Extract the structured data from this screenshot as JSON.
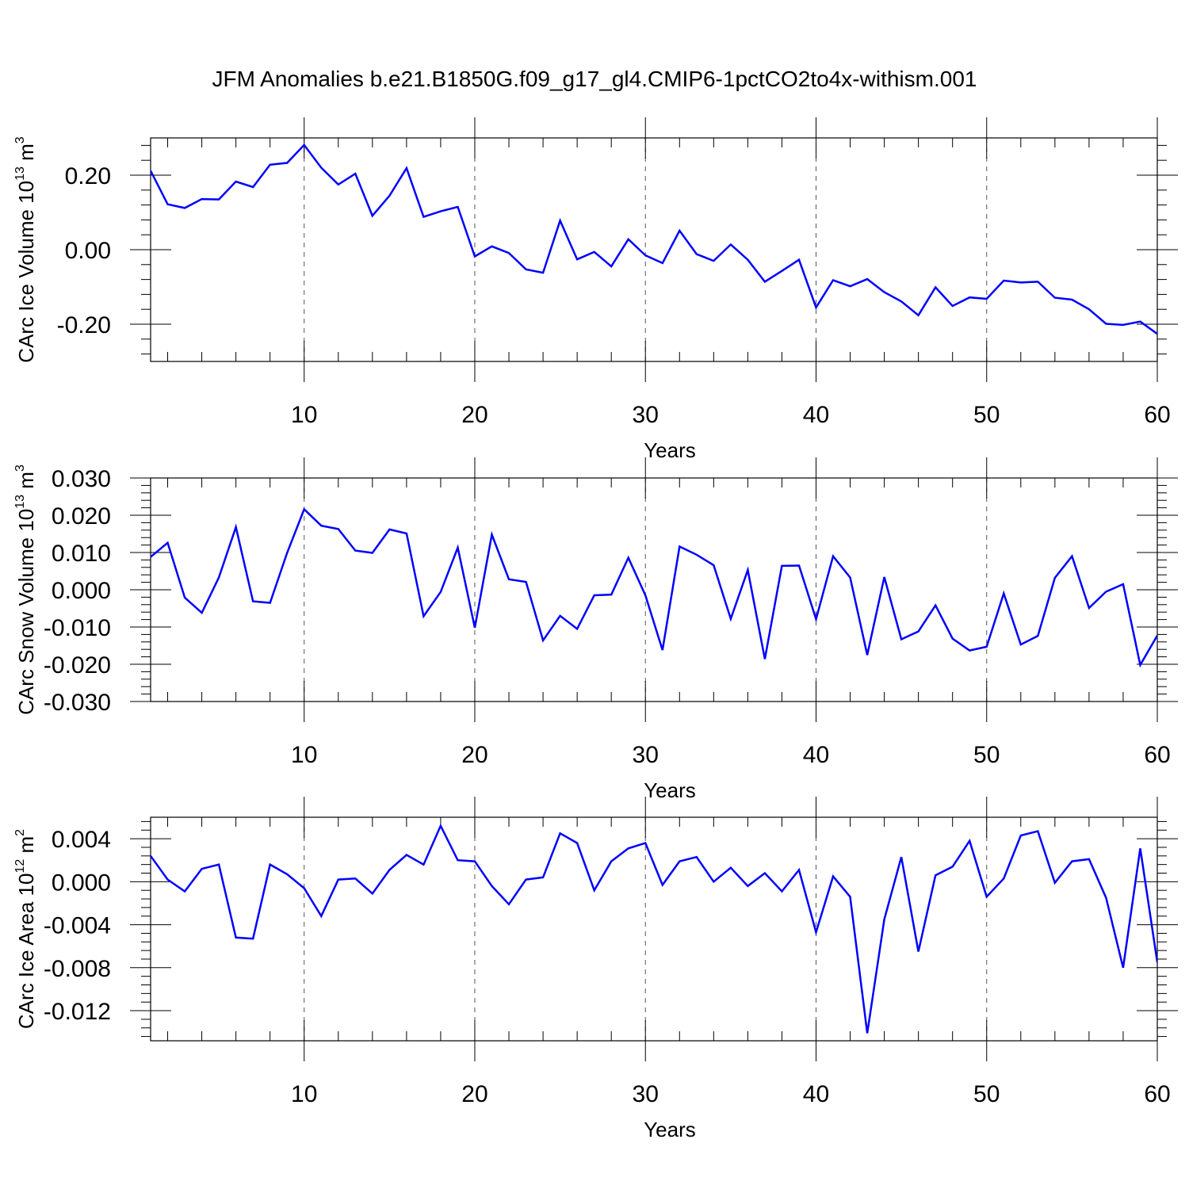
{
  "title": "JFM Anomalies b.e21.B1850G.f09_g17_gl4.CMIP6-1pctCO2to4x-withism.001",
  "colors": {
    "line": "#0000ff",
    "axis": "#000000",
    "grid": "#555555"
  },
  "chart_data": [
    {
      "type": "line",
      "ylabel_main": "CArc Ice Volume 10",
      "ylabel_exp": "13",
      "ylabel_unit": " m",
      "ylabel_unit_exp": "3",
      "xlabel": "Years",
      "xlim": [
        1,
        60
      ],
      "ylim": [
        -0.3,
        0.3
      ],
      "xticks": [
        10,
        20,
        30,
        40,
        50,
        60
      ],
      "xtick_labels": [
        "10",
        "20",
        "30",
        "40",
        "50",
        "60"
      ],
      "yticks": [
        0.2,
        0.0,
        -0.2
      ],
      "ytick_labels": [
        "0.20",
        "0.00",
        "-0.20"
      ],
      "grid": "vertical dashed at major x ticks",
      "x": [
        1,
        2,
        3,
        4,
        5,
        6,
        7,
        8,
        9,
        10,
        11,
        12,
        13,
        14,
        15,
        16,
        17,
        18,
        19,
        20,
        21,
        22,
        23,
        24,
        25,
        26,
        27,
        28,
        29,
        30,
        31,
        32,
        33,
        34,
        35,
        36,
        37,
        38,
        39,
        40,
        41,
        42,
        43,
        44,
        45,
        46,
        47,
        48,
        49,
        50,
        51,
        52,
        53,
        54,
        55,
        56,
        57,
        58,
        59,
        60
      ],
      "series": [
        {
          "name": "CArc Ice Volume",
          "values": [
            0.212,
            0.122,
            0.112,
            0.136,
            0.135,
            0.183,
            0.168,
            0.228,
            0.233,
            0.281,
            0.22,
            0.175,
            0.204,
            0.091,
            0.145,
            0.219,
            0.088,
            0.103,
            0.115,
            -0.018,
            0.009,
            -0.009,
            -0.053,
            -0.062,
            0.078,
            -0.026,
            -0.006,
            -0.045,
            0.028,
            -0.015,
            -0.036,
            0.051,
            -0.012,
            -0.03,
            0.014,
            -0.027,
            -0.086,
            -0.057,
            -0.027,
            -0.155,
            -0.082,
            -0.098,
            -0.079,
            -0.114,
            -0.139,
            -0.176,
            -0.101,
            -0.151,
            -0.128,
            -0.132,
            -0.083,
            -0.088,
            -0.086,
            -0.129,
            -0.134,
            -0.16,
            -0.199,
            -0.202,
            -0.193,
            -0.226
          ]
        }
      ]
    },
    {
      "type": "line",
      "ylabel_main": "CArc Snow Volume 10",
      "ylabel_exp": "13",
      "ylabel_unit": " m",
      "ylabel_unit_exp": "3",
      "xlabel": "Years",
      "xlim": [
        1,
        60
      ],
      "ylim": [
        -0.03,
        0.03
      ],
      "xticks": [
        10,
        20,
        30,
        40,
        50,
        60
      ],
      "xtick_labels": [
        "10",
        "20",
        "30",
        "40",
        "50",
        "60"
      ],
      "yticks": [
        0.03,
        0.02,
        0.01,
        0.0,
        -0.01,
        -0.02,
        -0.03
      ],
      "ytick_labels": [
        "0.030",
        "0.020",
        "0.010",
        "0.000",
        "-0.010",
        "-0.020",
        "-0.030"
      ],
      "grid": "vertical dashed at major x ticks",
      "x": [
        1,
        2,
        3,
        4,
        5,
        6,
        7,
        8,
        9,
        10,
        11,
        12,
        13,
        14,
        15,
        16,
        17,
        18,
        19,
        20,
        21,
        22,
        23,
        24,
        25,
        26,
        27,
        28,
        29,
        30,
        31,
        32,
        33,
        34,
        35,
        36,
        37,
        38,
        39,
        40,
        41,
        42,
        43,
        44,
        45,
        46,
        47,
        48,
        49,
        50,
        51,
        52,
        53,
        54,
        55,
        56,
        57,
        58,
        59,
        60
      ],
      "series": [
        {
          "name": "CArc Snow Volume",
          "values": [
            0.0088,
            0.0126,
            -0.0021,
            -0.0062,
            0.0033,
            0.0168,
            -0.0031,
            -0.0035,
            0.0099,
            0.0216,
            0.0172,
            0.0163,
            0.0105,
            0.0099,
            0.0162,
            0.0151,
            -0.0071,
            -0.0006,
            0.0113,
            -0.0102,
            0.0148,
            0.0028,
            0.0021,
            -0.0136,
            -0.007,
            -0.0105,
            -0.0015,
            -0.0013,
            0.0086,
            -0.0015,
            -0.0162,
            0.0116,
            0.0094,
            0.0066,
            -0.0078,
            0.0053,
            -0.0186,
            0.0064,
            0.0065,
            -0.0079,
            0.009,
            0.0033,
            -0.0175,
            0.0034,
            -0.0133,
            -0.0112,
            -0.0042,
            -0.0131,
            -0.0163,
            -0.0153,
            -0.001,
            -0.0147,
            -0.0124,
            0.0032,
            0.009,
            -0.0049,
            -0.0005,
            0.0015,
            -0.0202,
            -0.0123
          ]
        }
      ]
    },
    {
      "type": "line",
      "ylabel_main": "CArc Ice Area 10",
      "ylabel_exp": "12",
      "ylabel_unit": " m",
      "ylabel_unit_exp": "2",
      "xlabel": "Years",
      "xlim": [
        1,
        60
      ],
      "ylim": [
        -0.0148,
        0.006
      ],
      "xticks": [
        10,
        20,
        30,
        40,
        50,
        60
      ],
      "xtick_labels": [
        "10",
        "20",
        "30",
        "40",
        "50",
        "60"
      ],
      "yticks": [
        0.004,
        0.0,
        -0.004,
        -0.008,
        -0.012
      ],
      "ytick_labels": [
        "0.004",
        "0.000",
        "-0.004",
        "-0.008",
        "-0.012"
      ],
      "grid": "vertical dashed at major x ticks",
      "x": [
        1,
        2,
        3,
        4,
        5,
        6,
        7,
        8,
        9,
        10,
        11,
        12,
        13,
        14,
        15,
        16,
        17,
        18,
        19,
        20,
        21,
        22,
        23,
        24,
        25,
        26,
        27,
        28,
        29,
        30,
        31,
        32,
        33,
        34,
        35,
        36,
        37,
        38,
        39,
        40,
        41,
        42,
        43,
        44,
        45,
        46,
        47,
        48,
        49,
        50,
        51,
        52,
        53,
        54,
        55,
        56,
        57,
        58,
        59,
        60
      ],
      "series": [
        {
          "name": "CArc Ice Area",
          "values": [
            0.0024,
            0.0002,
            -0.0009,
            0.0012,
            0.0016,
            -0.0052,
            -0.0053,
            0.0016,
            0.0007,
            -0.0006,
            -0.0032,
            0.0002,
            0.0003,
            -0.0011,
            0.0011,
            0.0025,
            0.0016,
            0.0052,
            0.002,
            0.0019,
            -0.0004,
            -0.0021,
            0.0002,
            0.0004,
            0.0045,
            0.0036,
            -0.0008,
            0.0019,
            0.0031,
            0.0036,
            -0.0003,
            0.0019,
            0.0023,
            0.0,
            0.0013,
            -0.0004,
            0.0008,
            -0.0009,
            0.0011,
            -0.0047,
            0.0005,
            -0.0014,
            -0.0141,
            -0.0035,
            0.0023,
            -0.0065,
            0.0006,
            0.0014,
            0.0038,
            -0.0014,
            0.0003,
            0.0043,
            0.0047,
            -0.0001,
            0.0019,
            0.0021,
            -0.0015,
            -0.008,
            0.0031,
            -0.0075
          ]
        }
      ]
    }
  ]
}
